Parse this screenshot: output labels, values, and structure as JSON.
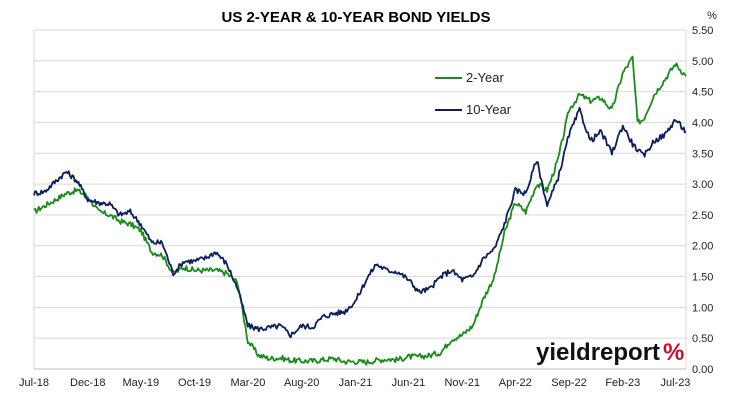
{
  "chart_data": {
    "type": "line",
    "title": "US 2-YEAR & 10-YEAR BOND YIELDS",
    "ylabel": "%",
    "xlabel": "",
    "ylim": [
      0,
      5.5
    ],
    "yticks": [
      "0.00",
      "0.50",
      "1.00",
      "1.50",
      "2.00",
      "2.50",
      "3.00",
      "3.50",
      "4.00",
      "4.50",
      "5.00",
      "5.50"
    ],
    "xlim": [
      "2018-07-01",
      "2023-07-31"
    ],
    "xticks": [
      {
        "date": "2018-07-01",
        "label": "Jul-18"
      },
      {
        "date": "2018-12-01",
        "label": "Dec-18"
      },
      {
        "date": "2019-05-01",
        "label": "May-19"
      },
      {
        "date": "2019-10-01",
        "label": "Oct-19"
      },
      {
        "date": "2020-03-01",
        "label": "Mar-20"
      },
      {
        "date": "2020-08-01",
        "label": "Aug-20"
      },
      {
        "date": "2021-01-01",
        "label": "Jan-21"
      },
      {
        "date": "2021-06-01",
        "label": "Jun-21"
      },
      {
        "date": "2021-11-01",
        "label": "Nov-21"
      },
      {
        "date": "2022-04-01",
        "label": "Apr-22"
      },
      {
        "date": "2022-09-01",
        "label": "Sep-22"
      },
      {
        "date": "2023-02-01",
        "label": "Feb-23"
      },
      {
        "date": "2023-07-01",
        "label": "Jul-23"
      }
    ],
    "grid": true,
    "legend_position": "top-right",
    "series": [
      {
        "name": "2-Year",
        "color": "#1a8c1a",
        "points": [
          [
            "2018-07-01",
            2.55
          ],
          [
            "2018-08-01",
            2.65
          ],
          [
            "2018-09-01",
            2.75
          ],
          [
            "2018-10-01",
            2.85
          ],
          [
            "2018-11-01",
            2.9
          ],
          [
            "2018-12-01",
            2.8
          ],
          [
            "2019-01-01",
            2.55
          ],
          [
            "2019-02-01",
            2.5
          ],
          [
            "2019-03-01",
            2.4
          ],
          [
            "2019-04-01",
            2.35
          ],
          [
            "2019-05-01",
            2.25
          ],
          [
            "2019-06-01",
            1.9
          ],
          [
            "2019-07-01",
            1.85
          ],
          [
            "2019-08-01",
            1.55
          ],
          [
            "2019-09-01",
            1.65
          ],
          [
            "2019-10-01",
            1.6
          ],
          [
            "2019-11-01",
            1.6
          ],
          [
            "2019-12-01",
            1.6
          ],
          [
            "2020-01-01",
            1.55
          ],
          [
            "2020-02-01",
            1.4
          ],
          [
            "2020-03-01",
            0.45
          ],
          [
            "2020-04-01",
            0.22
          ],
          [
            "2020-05-01",
            0.17
          ],
          [
            "2020-06-01",
            0.18
          ],
          [
            "2020-07-01",
            0.14
          ],
          [
            "2020-08-01",
            0.13
          ],
          [
            "2020-09-01",
            0.13
          ],
          [
            "2020-10-01",
            0.15
          ],
          [
            "2020-11-01",
            0.17
          ],
          [
            "2020-12-01",
            0.12
          ],
          [
            "2021-01-01",
            0.12
          ],
          [
            "2021-02-01",
            0.11
          ],
          [
            "2021-03-01",
            0.14
          ],
          [
            "2021-04-01",
            0.16
          ],
          [
            "2021-05-01",
            0.15
          ],
          [
            "2021-06-01",
            0.2
          ],
          [
            "2021-07-01",
            0.2
          ],
          [
            "2021-08-01",
            0.22
          ],
          [
            "2021-09-01",
            0.27
          ],
          [
            "2021-10-01",
            0.48
          ],
          [
            "2021-11-01",
            0.55
          ],
          [
            "2021-12-01",
            0.7
          ],
          [
            "2022-01-01",
            1.15
          ],
          [
            "2022-02-01",
            1.5
          ],
          [
            "2022-03-01",
            2.2
          ],
          [
            "2022-04-01",
            2.7
          ],
          [
            "2022-05-01",
            2.55
          ],
          [
            "2022-06-01",
            3.0
          ],
          [
            "2022-07-01",
            2.9
          ],
          [
            "2022-08-01",
            3.4
          ],
          [
            "2022-09-01",
            4.2
          ],
          [
            "2022-10-01",
            4.45
          ],
          [
            "2022-11-01",
            4.35
          ],
          [
            "2022-12-01",
            4.4
          ],
          [
            "2023-01-01",
            4.2
          ],
          [
            "2023-02-01",
            4.8
          ],
          [
            "2023-03-01",
            5.05
          ],
          [
            "2023-03-15",
            4.0
          ],
          [
            "2023-04-01",
            4.05
          ],
          [
            "2023-05-01",
            4.45
          ],
          [
            "2023-06-01",
            4.7
          ],
          [
            "2023-07-01",
            4.95
          ],
          [
            "2023-07-31",
            4.75
          ]
        ]
      },
      {
        "name": "10-Year",
        "color": "#0d1f5c",
        "points": [
          [
            "2018-07-01",
            2.85
          ],
          [
            "2018-08-01",
            2.88
          ],
          [
            "2018-09-01",
            3.05
          ],
          [
            "2018-10-01",
            3.2
          ],
          [
            "2018-11-01",
            3.05
          ],
          [
            "2018-12-01",
            2.75
          ],
          [
            "2019-01-01",
            2.7
          ],
          [
            "2019-02-01",
            2.68
          ],
          [
            "2019-03-01",
            2.5
          ],
          [
            "2019-04-01",
            2.55
          ],
          [
            "2019-05-01",
            2.35
          ],
          [
            "2019-06-01",
            2.05
          ],
          [
            "2019-07-01",
            2.05
          ],
          [
            "2019-08-01",
            1.55
          ],
          [
            "2019-09-01",
            1.75
          ],
          [
            "2019-10-01",
            1.75
          ],
          [
            "2019-11-01",
            1.8
          ],
          [
            "2019-12-01",
            1.9
          ],
          [
            "2020-01-01",
            1.7
          ],
          [
            "2020-02-01",
            1.3
          ],
          [
            "2020-03-01",
            0.7
          ],
          [
            "2020-04-01",
            0.65
          ],
          [
            "2020-05-01",
            0.67
          ],
          [
            "2020-06-01",
            0.7
          ],
          [
            "2020-07-01",
            0.55
          ],
          [
            "2020-08-01",
            0.7
          ],
          [
            "2020-09-01",
            0.68
          ],
          [
            "2020-10-01",
            0.85
          ],
          [
            "2020-11-01",
            0.9
          ],
          [
            "2020-12-01",
            0.93
          ],
          [
            "2021-01-01",
            1.1
          ],
          [
            "2021-02-01",
            1.45
          ],
          [
            "2021-03-01",
            1.7
          ],
          [
            "2021-04-01",
            1.6
          ],
          [
            "2021-05-01",
            1.58
          ],
          [
            "2021-06-01",
            1.45
          ],
          [
            "2021-07-01",
            1.25
          ],
          [
            "2021-08-01",
            1.3
          ],
          [
            "2021-09-01",
            1.5
          ],
          [
            "2021-10-01",
            1.6
          ],
          [
            "2021-11-01",
            1.45
          ],
          [
            "2021-12-01",
            1.5
          ],
          [
            "2022-01-01",
            1.8
          ],
          [
            "2022-02-01",
            1.95
          ],
          [
            "2022-03-01",
            2.35
          ],
          [
            "2022-04-01",
            2.9
          ],
          [
            "2022-05-01",
            2.85
          ],
          [
            "2022-06-01",
            3.4
          ],
          [
            "2022-07-01",
            2.65
          ],
          [
            "2022-08-01",
            3.1
          ],
          [
            "2022-09-01",
            3.8
          ],
          [
            "2022-10-01",
            4.2
          ],
          [
            "2022-11-01",
            3.7
          ],
          [
            "2022-12-01",
            3.85
          ],
          [
            "2023-01-01",
            3.5
          ],
          [
            "2023-02-01",
            3.95
          ],
          [
            "2023-03-01",
            3.65
          ],
          [
            "2023-04-01",
            3.45
          ],
          [
            "2023-05-01",
            3.7
          ],
          [
            "2023-06-01",
            3.8
          ],
          [
            "2023-07-01",
            4.05
          ],
          [
            "2023-07-31",
            3.85
          ]
        ]
      }
    ]
  },
  "watermark": {
    "text_main": "yieldreport",
    "text_symbol": "%"
  }
}
